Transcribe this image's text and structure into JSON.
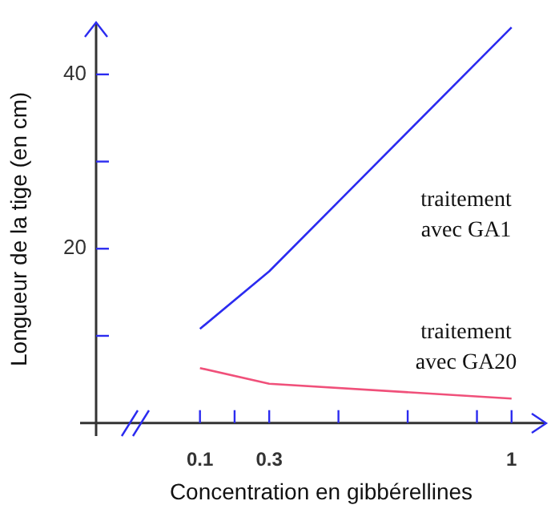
{
  "chart_data": {
    "type": "line",
    "xlabel": "Concentration en gibbérellines",
    "ylabel": "Longueur de la tige (en cm)",
    "xlim": [
      -0.2,
      1.1
    ],
    "xticks": [
      0.1,
      {
        "value": 0.2,
        "label": null
      },
      0.3,
      {
        "value": 0.5,
        "label": null
      },
      {
        "value": 0.7,
        "label": null
      },
      {
        "value": 0.9,
        "label": null
      },
      1
    ],
    "ylim": [
      -1.5,
      46
    ],
    "yticks": [
      {
        "value": 10,
        "label": null
      },
      20,
      {
        "value": 30,
        "label": null
      },
      40
    ],
    "x": [
      0.1,
      0.3,
      1
    ],
    "series": [
      {
        "name": "traitement avec GA1",
        "color": "#2b2bf0",
        "values": [
          10.8,
          17.4,
          45.4
        ]
      },
      {
        "name": "traitement avec GA20",
        "color": "#f0507a",
        "values": [
          6.3,
          4.5,
          2.8
        ]
      }
    ],
    "grid": false,
    "legend": false,
    "marker": "none"
  }
}
